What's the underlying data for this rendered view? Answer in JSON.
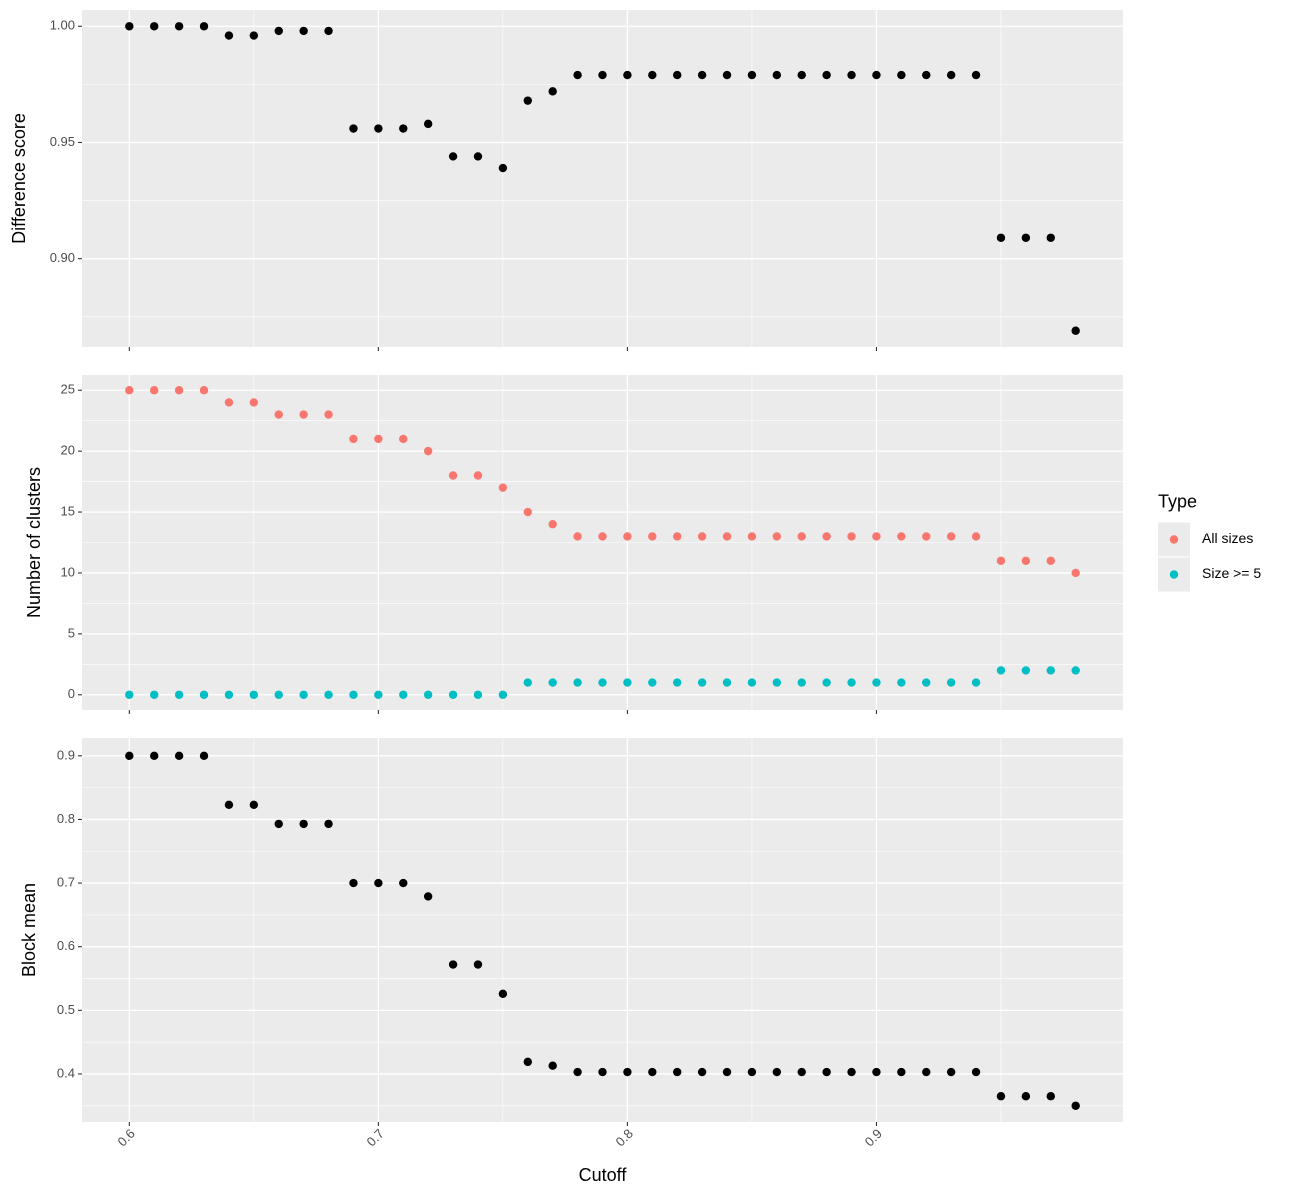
{
  "chart_data": [
    {
      "type": "scatter",
      "ylabel": "Difference score",
      "x": [
        0.6,
        0.61,
        0.62,
        0.63,
        0.64,
        0.65,
        0.66,
        0.67,
        0.68,
        0.69,
        0.7,
        0.71,
        0.72,
        0.73,
        0.74,
        0.75,
        0.76,
        0.77,
        0.78,
        0.79,
        0.8,
        0.81,
        0.82,
        0.83,
        0.84,
        0.85,
        0.86,
        0.87,
        0.88,
        0.89,
        0.9,
        0.91,
        0.92,
        0.93,
        0.94,
        0.95,
        0.96,
        0.97,
        0.98
      ],
      "values": [
        1.0,
        1.0,
        1.0,
        1.0,
        0.996,
        0.996,
        0.998,
        0.998,
        0.998,
        0.956,
        0.956,
        0.956,
        0.958,
        0.944,
        0.944,
        0.939,
        0.968,
        0.972,
        0.979,
        0.979,
        0.979,
        0.979,
        0.979,
        0.979,
        0.979,
        0.979,
        0.979,
        0.979,
        0.979,
        0.979,
        0.979,
        0.979,
        0.979,
        0.979,
        0.979,
        0.909,
        0.909,
        0.909,
        0.869
      ],
      "color": "#000000",
      "xlim": [
        0.581,
        0.999
      ],
      "xticks": [
        0.6,
        0.7,
        0.8,
        0.9
      ],
      "ylim": [
        0.862,
        1.007
      ],
      "yticks": [
        {
          "value": 0.9,
          "label": "0.90"
        },
        {
          "value": 0.95,
          "label": "0.95"
        },
        {
          "value": 1.0,
          "label": "1.00"
        }
      ],
      "grid": true
    },
    {
      "type": "scatter",
      "ylabel": "Number of clusters",
      "legend_title": "Type",
      "legend": "right",
      "x": [
        0.6,
        0.61,
        0.62,
        0.63,
        0.64,
        0.65,
        0.66,
        0.67,
        0.68,
        0.69,
        0.7,
        0.71,
        0.72,
        0.73,
        0.74,
        0.75,
        0.76,
        0.77,
        0.78,
        0.79,
        0.8,
        0.81,
        0.82,
        0.83,
        0.84,
        0.85,
        0.86,
        0.87,
        0.88,
        0.89,
        0.9,
        0.91,
        0.92,
        0.93,
        0.94,
        0.95,
        0.96,
        0.97,
        0.98
      ],
      "series": [
        {
          "name": "All sizes",
          "color": "#F8766D",
          "values": [
            25,
            25,
            25,
            25,
            24,
            24,
            23,
            23,
            23,
            21,
            21,
            21,
            20,
            18,
            18,
            17,
            15,
            14,
            13,
            13,
            13,
            13,
            13,
            13,
            13,
            13,
            13,
            13,
            13,
            13,
            13,
            13,
            13,
            13,
            13,
            11,
            11,
            11,
            10
          ]
        },
        {
          "name": "Size >= 5",
          "color": "#00BFC4",
          "values": [
            0,
            0,
            0,
            0,
            0,
            0,
            0,
            0,
            0,
            0,
            0,
            0,
            0,
            0,
            0,
            0,
            1,
            1,
            1,
            1,
            1,
            1,
            1,
            1,
            1,
            1,
            1,
            1,
            1,
            1,
            1,
            1,
            1,
            1,
            1,
            2,
            2,
            2,
            2
          ]
        }
      ],
      "xlim": [
        0.581,
        0.999
      ],
      "xticks": [
        0.6,
        0.7,
        0.8,
        0.9
      ],
      "ylim": [
        -1.25,
        26.25
      ],
      "yticks": [
        0,
        5,
        10,
        15,
        20,
        25
      ],
      "grid": true
    },
    {
      "type": "scatter",
      "ylabel": "Block mean",
      "xlabel": "Cutoff",
      "x": [
        0.6,
        0.61,
        0.62,
        0.63,
        0.64,
        0.65,
        0.66,
        0.67,
        0.68,
        0.69,
        0.7,
        0.71,
        0.72,
        0.73,
        0.74,
        0.75,
        0.76,
        0.77,
        0.78,
        0.79,
        0.8,
        0.81,
        0.82,
        0.83,
        0.84,
        0.85,
        0.86,
        0.87,
        0.88,
        0.89,
        0.9,
        0.91,
        0.92,
        0.93,
        0.94,
        0.95,
        0.96,
        0.97,
        0.98
      ],
      "values": [
        0.9,
        0.9,
        0.9,
        0.9,
        0.823,
        0.823,
        0.793,
        0.793,
        0.793,
        0.7,
        0.7,
        0.7,
        0.679,
        0.572,
        0.572,
        0.526,
        0.419,
        0.413,
        0.403,
        0.403,
        0.403,
        0.403,
        0.403,
        0.403,
        0.403,
        0.403,
        0.403,
        0.403,
        0.403,
        0.403,
        0.403,
        0.403,
        0.403,
        0.403,
        0.403,
        0.365,
        0.365,
        0.365,
        0.35
      ],
      "color": "#000000",
      "xlim": [
        0.581,
        0.999
      ],
      "xticks": [
        0.6,
        0.7,
        0.8,
        0.9
      ],
      "ylim": [
        0.3245,
        0.928
      ],
      "yticks": [
        0.4,
        0.5,
        0.6,
        0.7,
        0.8,
        0.9
      ],
      "grid": true
    }
  ]
}
